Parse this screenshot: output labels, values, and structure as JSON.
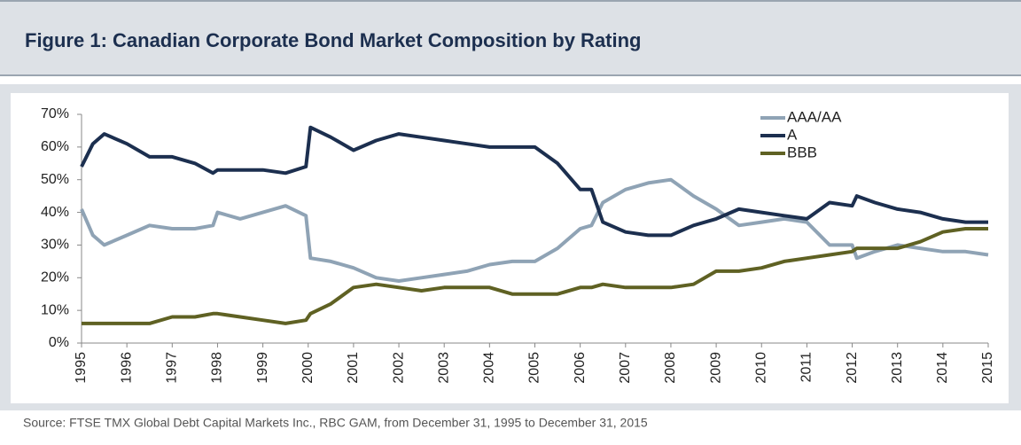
{
  "chart_data": {
    "type": "line",
    "title": "Figure 1: Canadian Corporate Bond Market Composition by Rating",
    "source": "Source: FTSE TMX Global Debt Capital Markets Inc., RBC GAM, from December 31, 1995 to December 31, 2015",
    "x": [
      1995,
      1995.25,
      1995.5,
      1996,
      1996.5,
      1997,
      1997.5,
      1997.9,
      1998,
      1998.5,
      1999,
      1999.5,
      1999.95,
      2000.05,
      2000.5,
      2001,
      2001.5,
      2002,
      2002.5,
      2003,
      2003.5,
      2004,
      2004.5,
      2005,
      2005.5,
      2006,
      2006.25,
      2006.5,
      2007,
      2007.5,
      2008,
      2008.5,
      2009,
      2009.5,
      2010,
      2010.5,
      2011,
      2011.5,
      2012,
      2012.1,
      2012.5,
      2013,
      2013.5,
      2014,
      2014.5,
      2015
    ],
    "series": [
      {
        "name": "AAA/AA",
        "color": "#8fa3b5",
        "values": [
          41,
          33,
          30,
          33,
          36,
          35,
          35,
          36,
          40,
          38,
          40,
          42,
          39,
          26,
          25,
          23,
          20,
          19,
          20,
          21,
          22,
          24,
          25,
          25,
          29,
          35,
          36,
          43,
          47,
          49,
          50,
          45,
          41,
          36,
          37,
          38,
          37,
          30,
          30,
          26,
          28,
          30,
          29,
          28,
          28,
          27
        ]
      },
      {
        "name": "A",
        "color": "#1c2f4f",
        "values": [
          54,
          61,
          64,
          61,
          57,
          57,
          55,
          52,
          53,
          53,
          53,
          52,
          54,
          66,
          63,
          59,
          62,
          64,
          63,
          62,
          61,
          60,
          60,
          60,
          55,
          47,
          47,
          37,
          34,
          33,
          33,
          36,
          38,
          41,
          40,
          39,
          38,
          43,
          42,
          45,
          43,
          41,
          40,
          38,
          37,
          37
        ]
      },
      {
        "name": "BBB",
        "color": "#5f6123",
        "values": [
          6,
          6,
          6,
          6,
          6,
          8,
          8,
          9,
          9,
          8,
          7,
          6,
          7,
          9,
          12,
          17,
          18,
          17,
          16,
          17,
          17,
          17,
          15,
          15,
          15,
          17,
          17,
          18,
          17,
          17,
          17,
          18,
          22,
          22,
          23,
          25,
          26,
          27,
          28,
          29,
          29,
          29,
          31,
          34,
          35,
          35
        ]
      }
    ],
    "xlim": [
      1995,
      2015
    ],
    "xticks": [
      1995,
      1996,
      1997,
      1998,
      1999,
      2000,
      2001,
      2002,
      2003,
      2004,
      2005,
      2006,
      2007,
      2008,
      2009,
      2010,
      2011,
      2012,
      2013,
      2014,
      2015
    ],
    "ylim": [
      0,
      70
    ],
    "yticks": [
      {
        "value": 0,
        "label": "0%"
      },
      {
        "value": 10,
        "label": "10%"
      },
      {
        "value": 20,
        "label": "20%"
      },
      {
        "value": 30,
        "label": "30%"
      },
      {
        "value": 40,
        "label": "40%"
      },
      {
        "value": 50,
        "label": "50%"
      },
      {
        "value": 60,
        "label": "60%"
      },
      {
        "value": 70,
        "label": "70%"
      }
    ],
    "grid": false,
    "legend": "top-right"
  }
}
